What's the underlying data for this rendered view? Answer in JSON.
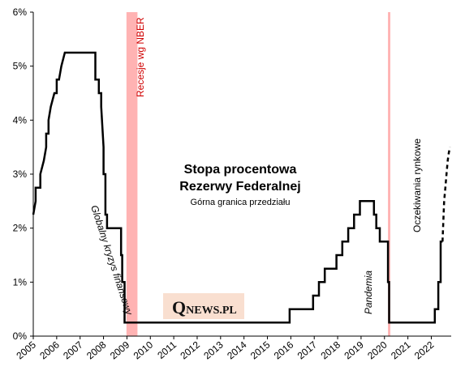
{
  "chart_data": {
    "type": "line",
    "title": "Stopa procentowa",
    "title_line2": "Rezerwy Federalnej",
    "subtitle": "Górna granica przedziału",
    "ylim": [
      0,
      6
    ],
    "xlim": [
      2005,
      2022.85
    ],
    "y_ticks": [
      "0%",
      "1%",
      "2%",
      "3%",
      "4%",
      "5%",
      "6%"
    ],
    "x_ticks": [
      "2005",
      "2006",
      "2007",
      "2008",
      "2009",
      "2010",
      "2011",
      "2012",
      "2013",
      "2014",
      "2015",
      "2016",
      "2017",
      "2018",
      "2019",
      "2020",
      "2021",
      "2022"
    ],
    "grid": false,
    "series": [
      {
        "style": "solid",
        "color": "#000000",
        "x": [
          2005.0,
          2005.1,
          2005.1,
          2005.3,
          2005.3,
          2005.45,
          2005.45,
          2005.55,
          2005.55,
          2005.65,
          2005.65,
          2005.75,
          2005.75,
          2005.9,
          2005.9,
          2006.0,
          2006.0,
          2006.1,
          2006.1,
          2006.2,
          2006.2,
          2006.35,
          2006.35,
          2006.45,
          2006.45,
          2006.6,
          2006.6,
          2007.65,
          2007.65,
          2007.8,
          2007.8,
          2007.9,
          2007.9,
          2008.0,
          2008.0,
          2008.08,
          2008.08,
          2008.15,
          2008.15,
          2008.25,
          2008.25,
          2008.75,
          2008.75,
          2008.8,
          2008.8,
          2008.9,
          2008.9,
          2008.95,
          2008.95,
          2015.95,
          2015.95,
          2016.95,
          2016.95,
          2017.2,
          2017.2,
          2017.45,
          2017.45,
          2017.95,
          2017.95,
          2018.2,
          2018.2,
          2018.45,
          2018.45,
          2018.7,
          2018.7,
          2018.95,
          2018.95,
          2019.55,
          2019.55,
          2019.65,
          2019.65,
          2019.8,
          2019.8,
          2020.15,
          2020.15,
          2020.2,
          2020.2,
          2022.15,
          2022.15,
          2022.3,
          2022.3,
          2022.4,
          2022.4,
          2022.48
        ],
        "y": [
          2.25,
          2.5,
          2.75,
          2.75,
          3.0,
          3.25,
          3.25,
          3.5,
          3.75,
          3.75,
          4.0,
          4.25,
          4.25,
          4.5,
          4.5,
          4.5,
          4.75,
          4.75,
          4.75,
          5.0,
          5.0,
          5.25,
          5.25,
          5.25,
          5.25,
          5.25,
          5.25,
          5.25,
          4.75,
          4.75,
          4.5,
          4.5,
          4.25,
          3.5,
          3.0,
          3.0,
          2.25,
          2.25,
          2.0,
          2.0,
          2.0,
          2.0,
          1.5,
          1.5,
          1.0,
          1.0,
          0.25,
          0.25,
          0.25,
          0.25,
          0.5,
          0.5,
          0.75,
          0.75,
          1.0,
          1.0,
          1.25,
          1.25,
          1.5,
          1.5,
          1.75,
          1.75,
          2.0,
          2.0,
          2.25,
          2.25,
          2.5,
          2.5,
          2.25,
          2.25,
          2.0,
          2.0,
          1.75,
          1.75,
          1.0,
          1.0,
          0.25,
          0.25,
          0.5,
          0.5,
          1.0,
          1.0,
          1.75,
          1.75
        ]
      },
      {
        "style": "dashed",
        "color": "#000000",
        "x": [
          2022.48,
          2022.55,
          2022.6,
          2022.65,
          2022.7,
          2022.75,
          2022.8
        ],
        "y": [
          1.75,
          2.5,
          2.75,
          3.0,
          3.25,
          3.4,
          3.5
        ]
      }
    ],
    "shaded_regions": [
      {
        "x_start": 2008.98,
        "x_end": 2009.45,
        "color": "#ffb3b3"
      },
      {
        "x_start": 2020.15,
        "x_end": 2020.25,
        "color": "#ffb3b3"
      }
    ],
    "annotations": {
      "recession": "Recesje wg NBER",
      "gfc": "Globalny kryzys finansowy",
      "pandemic": "Pandemia",
      "market_expectations": "Oczekiwania rynkowe"
    }
  },
  "logo": {
    "q": "Q",
    "rest": "NEWS.PL",
    "bg_color": "#f9dfd0"
  }
}
